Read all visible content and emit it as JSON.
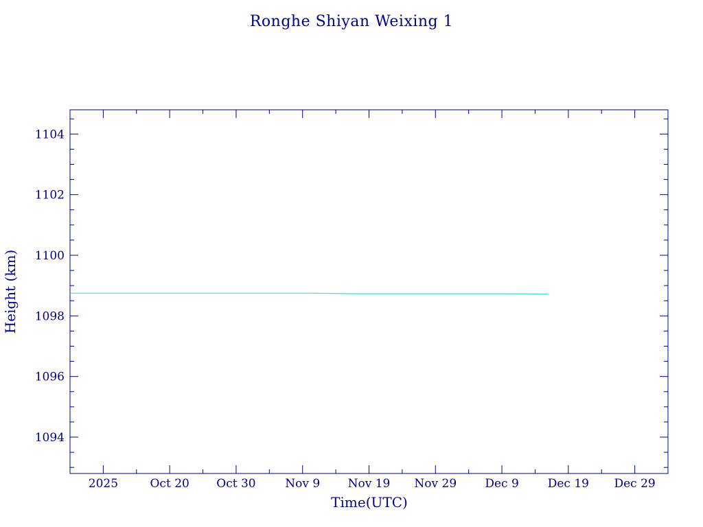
{
  "chart_data": {
    "type": "line",
    "title": "Ronghe Shiyan Weixing 1",
    "xlabel": "Time(UTC)",
    "ylabel": "Height (km)",
    "colors": {
      "axes": "#00008b",
      "series": "#40e0d0",
      "background": "#ffffff"
    },
    "xlim": [
      "2025-10-05",
      "2026-01-03"
    ],
    "ylim": [
      1092.8,
      1104.8
    ],
    "x_ticks": [
      {
        "date": "2025-10-10",
        "label": "2025"
      },
      {
        "date": "2025-10-20",
        "label": "Oct 20"
      },
      {
        "date": "2025-10-30",
        "label": "Oct 30"
      },
      {
        "date": "2025-11-09",
        "label": "Nov  9"
      },
      {
        "date": "2025-11-19",
        "label": "Nov 19"
      },
      {
        "date": "2025-11-29",
        "label": "Nov 29"
      },
      {
        "date": "2025-12-09",
        "label": "Dec  9"
      },
      {
        "date": "2025-12-19",
        "label": "Dec 19"
      },
      {
        "date": "2025-12-29",
        "label": "Dec 29"
      }
    ],
    "y_ticks": [
      1094,
      1096,
      1098,
      1100,
      1102,
      1104
    ],
    "grid": false,
    "series": [
      {
        "x": [
          "2025-10-05",
          "2025-10-25",
          "2025-11-10",
          "2025-11-17",
          "2025-11-30",
          "2025-12-10",
          "2025-12-16"
        ],
        "y": [
          1098.75,
          1098.75,
          1098.75,
          1098.73,
          1098.73,
          1098.73,
          1098.72
        ]
      }
    ]
  }
}
